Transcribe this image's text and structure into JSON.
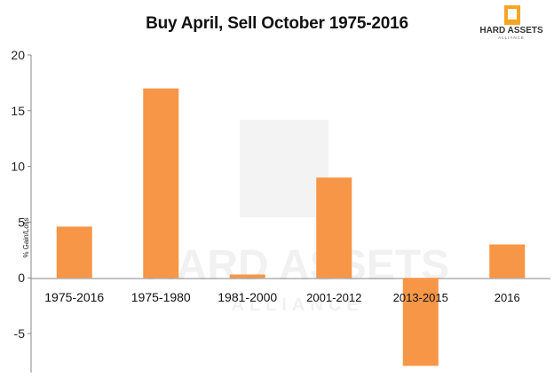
{
  "header": {
    "title": "Buy April, Sell October 1975-2016"
  },
  "logo": {
    "line1": "HARD ASSETS",
    "line2": "ALLIANCE",
    "color": "#F5A623"
  },
  "watermark": {
    "line1": "HARD ASSETS",
    "line2": "ALLIANCE"
  },
  "chart_data": {
    "type": "bar",
    "title": "Buy April, Sell October 1975-2016",
    "xlabel": "",
    "ylabel": "% Gain/Loss",
    "categories": [
      "1975-2016",
      "1975-1980",
      "1981-2000",
      "2001-2012",
      "2013-2015",
      "2016"
    ],
    "values": [
      4.6,
      17.0,
      0.3,
      9.0,
      -7.9,
      3.0
    ],
    "ylim": [
      -8.5,
      20
    ],
    "yticks": [
      20,
      15,
      10,
      5,
      0,
      -5
    ],
    "ytick_labels": [
      "20",
      "15",
      "10",
      "5",
      "0",
      "-5"
    ],
    "bar_color": "#F79646",
    "grid": false,
    "legend": "none"
  }
}
